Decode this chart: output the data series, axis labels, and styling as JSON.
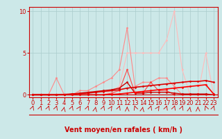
{
  "title": "",
  "xlabel": "Vent moyen/en rafales ( km/h )",
  "xlim": [
    -0.5,
    23.5
  ],
  "ylim": [
    -0.3,
    10.5
  ],
  "yticks": [
    0,
    5,
    10
  ],
  "xticks": [
    0,
    1,
    2,
    3,
    4,
    5,
    6,
    7,
    8,
    9,
    10,
    11,
    12,
    13,
    14,
    15,
    16,
    17,
    18,
    19,
    20,
    21,
    22,
    23
  ],
  "bg_color": "#cce8e8",
  "grid_color": "#aacccc",
  "series": [
    {
      "x": [
        0,
        1,
        2,
        3,
        4,
        5,
        6,
        7,
        8,
        9,
        10,
        11,
        12,
        13,
        14,
        15,
        16,
        17,
        18,
        19,
        20,
        21,
        22,
        23
      ],
      "y": [
        0.0,
        0.0,
        0.0,
        0.0,
        0.0,
        0.0,
        0.0,
        0.0,
        0.0,
        0.0,
        0.5,
        1.0,
        5.0,
        5.0,
        5.0,
        5.0,
        5.0,
        6.5,
        10.0,
        3.0,
        0.0,
        0.0,
        5.0,
        0.0
      ],
      "color": "#ffbbbb",
      "linewidth": 0.8,
      "marker": "D",
      "markersize": 1.5
    },
    {
      "x": [
        0,
        1,
        2,
        3,
        4,
        5,
        6,
        7,
        8,
        9,
        10,
        11,
        12,
        13,
        14,
        15,
        16,
        17,
        18,
        19,
        20,
        21,
        22,
        23
      ],
      "y": [
        0.0,
        0.0,
        0.0,
        2.0,
        0.0,
        0.0,
        0.5,
        0.5,
        1.0,
        1.5,
        2.0,
        3.0,
        8.0,
        1.0,
        1.5,
        1.5,
        2.0,
        2.0,
        1.0,
        0.0,
        0.0,
        0.0,
        0.0,
        0.0
      ],
      "color": "#ff8888",
      "linewidth": 0.8,
      "marker": "D",
      "markersize": 1.5
    },
    {
      "x": [
        0,
        1,
        2,
        3,
        4,
        5,
        6,
        7,
        8,
        9,
        10,
        11,
        12,
        13,
        14,
        15,
        16,
        17,
        18,
        19,
        20,
        21,
        22,
        23
      ],
      "y": [
        0.0,
        0.0,
        0.0,
        0.0,
        0.0,
        0.0,
        0.0,
        0.0,
        0.0,
        0.0,
        0.2,
        0.5,
        3.0,
        0.2,
        0.2,
        1.5,
        0.5,
        0.5,
        0.0,
        0.0,
        0.0,
        0.0,
        0.0,
        0.0
      ],
      "color": "#ff4444",
      "linewidth": 0.8,
      "marker": "D",
      "markersize": 1.5
    },
    {
      "x": [
        0,
        1,
        2,
        3,
        4,
        5,
        6,
        7,
        8,
        9,
        10,
        11,
        12,
        13,
        14,
        15,
        16,
        17,
        18,
        19,
        20,
        21,
        22,
        23
      ],
      "y": [
        0.0,
        0.0,
        0.0,
        0.0,
        0.0,
        0.1,
        0.2,
        0.3,
        0.4,
        0.5,
        0.6,
        0.8,
        1.5,
        0.2,
        0.2,
        0.3,
        0.3,
        0.3,
        0.2,
        0.1,
        0.1,
        0.1,
        0.1,
        0.0
      ],
      "color": "#cc0000",
      "linewidth": 1.0,
      "marker": "D",
      "markersize": 1.5
    },
    {
      "x": [
        0,
        1,
        2,
        3,
        4,
        5,
        6,
        7,
        8,
        9,
        10,
        11,
        12,
        13,
        14,
        15,
        16,
        17,
        18,
        19,
        20,
        21,
        22,
        23
      ],
      "y": [
        0.0,
        0.0,
        0.0,
        0.0,
        0.05,
        0.1,
        0.15,
        0.2,
        0.3,
        0.4,
        0.5,
        0.6,
        0.8,
        0.9,
        1.0,
        1.1,
        1.2,
        1.3,
        1.4,
        1.5,
        1.6,
        1.6,
        1.7,
        1.5
      ],
      "color": "#dd0000",
      "linewidth": 1.2,
      "marker": "D",
      "markersize": 1.5
    },
    {
      "x": [
        0,
        1,
        2,
        3,
        4,
        5,
        6,
        7,
        8,
        9,
        10,
        11,
        12,
        13,
        14,
        15,
        16,
        17,
        18,
        19,
        20,
        21,
        22,
        23
      ],
      "y": [
        0.0,
        0.0,
        0.0,
        0.0,
        0.0,
        0.0,
        0.0,
        0.0,
        0.0,
        0.0,
        0.05,
        0.1,
        0.2,
        0.3,
        0.4,
        0.5,
        0.6,
        0.7,
        0.8,
        0.9,
        1.0,
        1.1,
        1.2,
        0.1
      ],
      "color": "#ff0000",
      "linewidth": 1.2,
      "marker": "D",
      "markersize": 1.5
    }
  ],
  "xlabel_fontsize": 7,
  "tick_fontsize": 6,
  "tick_color": "#cc0000",
  "axis_color": "#cc0000",
  "xlabel_color": "#cc0000",
  "xlabel_fontweight": "bold"
}
